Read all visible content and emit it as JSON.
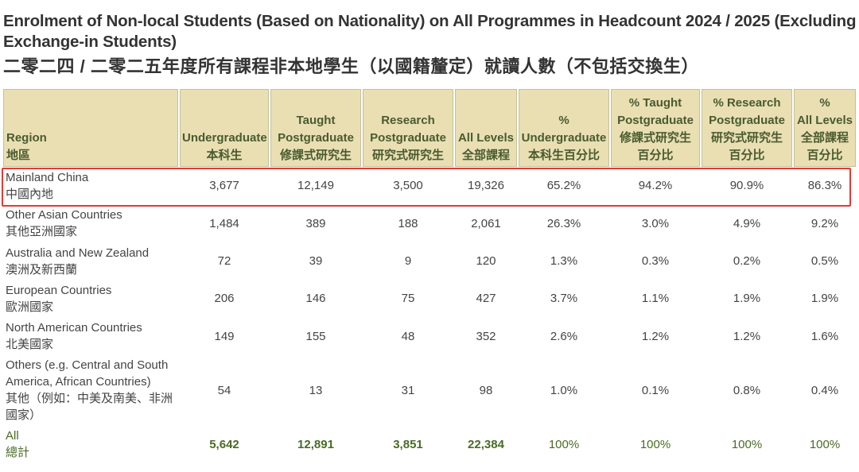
{
  "title_en": "Enrolment of Non-local Students (Based on Nationality) on All Programmes in Headcount 2024 / 2025 (Excluding Exchange-in Students)",
  "title_zh": "二零二四 / 二零二五年度所有課程非本地學生（以國籍釐定）就讀人數（不包括交換生）",
  "colors": {
    "header_bg": "#e9dfb3",
    "header_text": "#4a5a30",
    "highlight": "#e53935",
    "total_text": "#4a6a26"
  },
  "chart_data": {
    "type": "table",
    "columns": [
      {
        "en": "Region",
        "zh": "地區"
      },
      {
        "en": "Undergraduate",
        "zh": "本科生"
      },
      {
        "en": "Taught Postgraduate",
        "zh": "修課式研究生"
      },
      {
        "en": "Research Postgraduate",
        "zh": "研究式研究生"
      },
      {
        "en": "All Levels",
        "zh": "全部課程"
      },
      {
        "en": "% Undergraduate",
        "zh": "本科生百分比"
      },
      {
        "en": "% Taught Postgraduate",
        "zh": "修課式研究生 百分比"
      },
      {
        "en": "% Research Postgraduate",
        "zh": "研究式研究生 百分比"
      },
      {
        "en": "% All Levels",
        "zh": "全部課程 百分比"
      }
    ],
    "header_lines": [
      [
        "Region",
        "地區"
      ],
      [
        "Undergraduate",
        "本科生"
      ],
      [
        "Taught",
        "Postgraduate",
        "修課式研究生"
      ],
      [
        "Research",
        "Postgraduate",
        "研究式研究生"
      ],
      [
        "All Levels",
        "全部課程"
      ],
      [
        "%",
        "Undergraduate",
        "本科生百分比"
      ],
      [
        "% Taught",
        "Postgraduate",
        "修課式研究生",
        "百分比"
      ],
      [
        "% Research",
        "Postgraduate",
        "研究式研究生",
        "百分比"
      ],
      [
        "%",
        "All Levels",
        "全部課程",
        "百分比"
      ]
    ],
    "rows": [
      {
        "region_en": "Mainland China",
        "region_zh": "中國內地",
        "ug": "3,677",
        "tpg": "12,149",
        "rpg": "3,500",
        "all": "19,326",
        "pct_ug": "65.2%",
        "pct_tpg": "94.2%",
        "pct_rpg": "90.9%",
        "pct_all": "86.3%",
        "highlighted": true
      },
      {
        "region_en": "Other Asian Countries",
        "region_zh": "其他亞洲國家",
        "ug": "1,484",
        "tpg": "389",
        "rpg": "188",
        "all": "2,061",
        "pct_ug": "26.3%",
        "pct_tpg": "3.0%",
        "pct_rpg": "4.9%",
        "pct_all": "9.2%"
      },
      {
        "region_en": "Australia and New Zealand",
        "region_zh": "澳洲及新西蘭",
        "ug": "72",
        "tpg": "39",
        "rpg": "9",
        "all": "120",
        "pct_ug": "1.3%",
        "pct_tpg": "0.3%",
        "pct_rpg": "0.2%",
        "pct_all": "0.5%"
      },
      {
        "region_en": "European Countries",
        "region_zh": "歐洲國家",
        "ug": "206",
        "tpg": "146",
        "rpg": "75",
        "all": "427",
        "pct_ug": "3.7%",
        "pct_tpg": "1.1%",
        "pct_rpg": "1.9%",
        "pct_all": "1.9%"
      },
      {
        "region_en": "North American Countries",
        "region_zh": "北美國家",
        "ug": "149",
        "tpg": "155",
        "rpg": "48",
        "all": "352",
        "pct_ug": "2.6%",
        "pct_tpg": "1.2%",
        "pct_rpg": "1.2%",
        "pct_all": "1.6%"
      },
      {
        "region_en": "Others (e.g. Central and South America, African Countries)",
        "region_zh": "其他（例如：中美及南美、非洲國家）",
        "ug": "54",
        "tpg": "13",
        "rpg": "31",
        "all": "98",
        "pct_ug": "1.0%",
        "pct_tpg": "0.1%",
        "pct_rpg": "0.8%",
        "pct_all": "0.4%"
      }
    ],
    "total": {
      "region_en": "All",
      "region_zh": "總計",
      "ug": "5,642",
      "tpg": "12,891",
      "rpg": "3,851",
      "all": "22,384",
      "pct_ug": "100%",
      "pct_tpg": "100%",
      "pct_rpg": "100%",
      "pct_all": "100%"
    }
  }
}
